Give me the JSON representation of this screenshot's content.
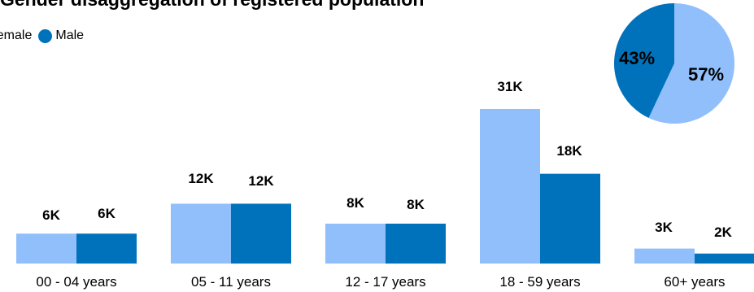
{
  "chart_data": {
    "type": "bar",
    "title": "Gender disaggregation of registered population",
    "categories": [
      "00 - 04 years",
      "05 - 11 years",
      "12 - 17 years",
      "18 - 59 years",
      "60+ years"
    ],
    "series": [
      {
        "name": "Female",
        "color": "#91BFFB",
        "values": [
          6,
          12,
          8,
          31,
          3
        ],
        "labels": [
          "6K",
          "12K",
          "8K",
          "31K",
          "3K"
        ]
      },
      {
        "name": "Male",
        "color": "#0072BC",
        "values": [
          6,
          12,
          8,
          18,
          2
        ],
        "labels": [
          "6K",
          "12K",
          "8K",
          "18K",
          "2K"
        ]
      }
    ],
    "unit": "K",
    "ylim": [
      0,
      35
    ],
    "legend_position": "top-left",
    "pie": {
      "slices": [
        {
          "name": "Female",
          "value": 57,
          "label": "57%",
          "color": "#91BFFB"
        },
        {
          "name": "Male",
          "value": 43,
          "label": "43%",
          "color": "#0072BC"
        }
      ]
    }
  }
}
